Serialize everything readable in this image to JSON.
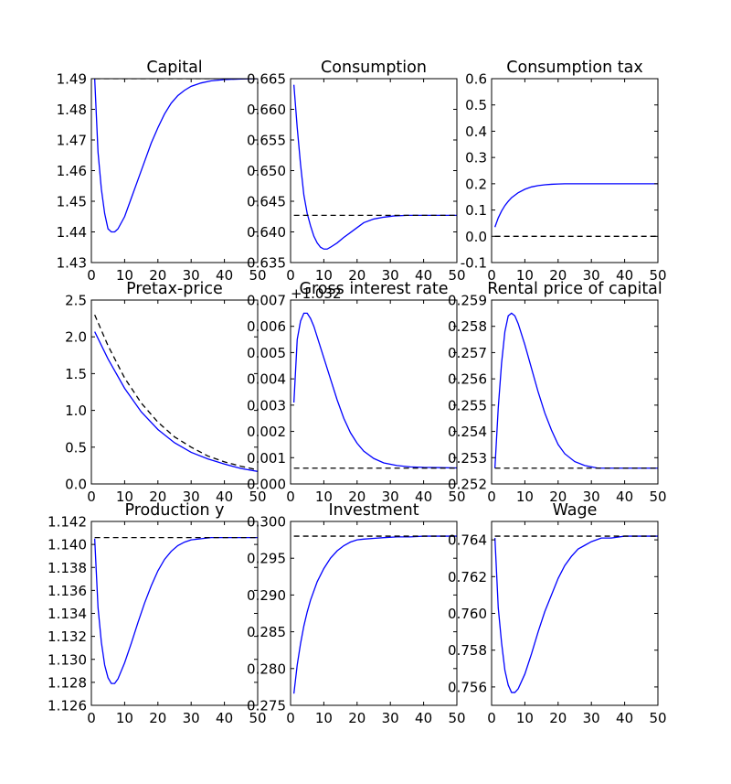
{
  "chart_data": [
    {
      "type": "line",
      "title": "Capital",
      "xlim": [
        0,
        50
      ],
      "ylim": [
        1.43,
        1.49
      ],
      "xticks": [
        0,
        10,
        20,
        30,
        40,
        50
      ],
      "xtick_labels": [
        "0",
        "10",
        "20",
        "30",
        "40",
        "50"
      ],
      "yticks": [
        1.43,
        1.44,
        1.45,
        1.46,
        1.47,
        1.48,
        1.49
      ],
      "ytick_labels": [
        "1.43",
        "1.44",
        "1.45",
        "1.46",
        "1.47",
        "1.48",
        "1.49"
      ],
      "series": [
        {
          "name": "path",
          "color": "#0000ff",
          "style": "solid",
          "x": [
            1,
            2,
            3,
            4,
            5,
            6,
            7,
            8,
            10,
            12,
            14,
            16,
            18,
            20,
            22,
            24,
            26,
            28,
            30,
            33,
            36,
            40,
            45,
            50
          ],
          "y": [
            1.49,
            1.466,
            1.454,
            1.446,
            1.441,
            1.44,
            1.44,
            1.441,
            1.445,
            1.451,
            1.457,
            1.463,
            1.469,
            1.474,
            1.4785,
            1.482,
            1.4845,
            1.4862,
            1.4875,
            1.4886,
            1.4893,
            1.4897,
            1.4899,
            1.49
          ]
        },
        {
          "name": "steady state",
          "color": "#000000",
          "style": "dashed",
          "x": [
            1,
            50
          ],
          "y": [
            1.49,
            1.49
          ]
        }
      ]
    },
    {
      "type": "line",
      "title": "Consumption",
      "xlim": [
        0,
        50
      ],
      "ylim": [
        0.635,
        0.665
      ],
      "xticks": [
        0,
        10,
        20,
        30,
        40,
        50
      ],
      "xtick_labels": [
        "0",
        "10",
        "20",
        "30",
        "40",
        "50"
      ],
      "yticks": [
        0.635,
        0.64,
        0.645,
        0.65,
        0.655,
        0.66,
        0.665
      ],
      "ytick_labels": [
        "0.635",
        "0.640",
        "0.645",
        "0.650",
        "0.655",
        "0.660",
        "0.665"
      ],
      "series": [
        {
          "name": "path",
          "color": "#0000ff",
          "style": "solid",
          "x": [
            1,
            2,
            3,
            4,
            5,
            6,
            7,
            8,
            9,
            10,
            11,
            12,
            14,
            16,
            18,
            20,
            22,
            25,
            28,
            31,
            35,
            40,
            45,
            50
          ],
          "y": [
            0.664,
            0.657,
            0.651,
            0.646,
            0.643,
            0.641,
            0.6393,
            0.6382,
            0.6375,
            0.6372,
            0.6372,
            0.6375,
            0.6382,
            0.6391,
            0.6399,
            0.6407,
            0.6415,
            0.6421,
            0.6424,
            0.6426,
            0.6427,
            0.6427,
            0.6427,
            0.6427
          ]
        },
        {
          "name": "steady state",
          "color": "#000000",
          "style": "dashed",
          "x": [
            1,
            50
          ],
          "y": [
            0.6427,
            0.6427
          ]
        }
      ]
    },
    {
      "type": "line",
      "title": "Consumption tax",
      "xlim": [
        0,
        50
      ],
      "ylim": [
        -0.1,
        0.6
      ],
      "xticks": [
        0,
        10,
        20,
        30,
        40,
        50
      ],
      "xtick_labels": [
        "0",
        "10",
        "20",
        "30",
        "40",
        "50"
      ],
      "yticks": [
        -0.1,
        0,
        0.1,
        0.2,
        0.3,
        0.4,
        0.5,
        0.6
      ],
      "ytick_labels": [
        "-0.1",
        "0.0",
        "0.1",
        "0.2",
        "0.3",
        "0.4",
        "0.5",
        "0.6"
      ],
      "series": [
        {
          "name": "path",
          "color": "#0000ff",
          "style": "solid",
          "x": [
            1,
            2,
            3,
            4,
            5,
            6,
            8,
            10,
            12,
            14,
            16,
            18,
            20,
            22,
            25,
            30,
            40,
            50
          ],
          "y": [
            0.035,
            0.07,
            0.096,
            0.117,
            0.133,
            0.147,
            0.166,
            0.179,
            0.188,
            0.193,
            0.196,
            0.198,
            0.199,
            0.2,
            0.2,
            0.2,
            0.2,
            0.2
          ]
        },
        {
          "name": "baseline",
          "color": "#000000",
          "style": "dashed",
          "x": [
            1,
            50
          ],
          "y": [
            0,
            0
          ]
        }
      ]
    },
    {
      "type": "line",
      "title": "Pretax-price",
      "xlim": [
        0,
        50
      ],
      "ylim": [
        0,
        2.5
      ],
      "xticks": [
        0,
        10,
        20,
        30,
        40,
        50
      ],
      "xtick_labels": [
        "0",
        "10",
        "20",
        "30",
        "40",
        "50"
      ],
      "yticks": [
        0,
        0.5,
        1,
        1.5,
        2,
        2.5
      ],
      "ytick_labels": [
        "0.0",
        "0.5",
        "1.0",
        "1.5",
        "2.0",
        "2.5"
      ],
      "series": [
        {
          "name": "path",
          "color": "#0000ff",
          "style": "solid",
          "x": [
            1,
            5,
            10,
            15,
            20,
            25,
            30,
            35,
            40,
            45,
            50
          ],
          "y": [
            2.07,
            1.7,
            1.3,
            0.98,
            0.74,
            0.56,
            0.43,
            0.34,
            0.27,
            0.21,
            0.17
          ]
        },
        {
          "name": "comparison",
          "color": "#000000",
          "style": "dashed",
          "x": [
            1,
            5,
            10,
            15,
            20,
            25,
            30,
            35,
            40,
            45,
            50
          ],
          "y": [
            2.3,
            1.88,
            1.44,
            1.1,
            0.84,
            0.64,
            0.5,
            0.38,
            0.3,
            0.24,
            0.19
          ]
        }
      ]
    },
    {
      "type": "line",
      "title": "Gross interest rate",
      "offset_text": "+1.032",
      "xlim": [
        0,
        50
      ],
      "ylim": [
        0,
        0.007
      ],
      "xticks": [
        0,
        10,
        20,
        30,
        40,
        50
      ],
      "xtick_labels": [
        "0",
        "10",
        "20",
        "30",
        "40",
        "50"
      ],
      "yticks": [
        0,
        0.001,
        0.002,
        0.003,
        0.004,
        0.005,
        0.006,
        0.007
      ],
      "ytick_labels": [
        "0.000",
        "0.001",
        "0.002",
        "0.003",
        "0.004",
        "0.005",
        "0.006",
        "0.007"
      ],
      "series": [
        {
          "name": "path",
          "color": "#0000ff",
          "style": "solid",
          "x": [
            1,
            2,
            3,
            4,
            5,
            6,
            7,
            8,
            10,
            12,
            14,
            16,
            18,
            20,
            22,
            25,
            28,
            32,
            36,
            40,
            45,
            50
          ],
          "y": [
            0.0031,
            0.0055,
            0.0062,
            0.0065,
            0.0065,
            0.0063,
            0.006,
            0.0056,
            0.0048,
            0.004,
            0.0032,
            0.0025,
            0.00195,
            0.00155,
            0.00125,
            0.00097,
            0.0008,
            0.0007,
            0.00065,
            0.00063,
            0.00062,
            0.00061
          ]
        },
        {
          "name": "steady state",
          "color": "#000000",
          "style": "dashed",
          "x": [
            1,
            50
          ],
          "y": [
            0.0006,
            0.0006
          ]
        }
      ]
    },
    {
      "type": "line",
      "title": "Rental price of capital",
      "xlim": [
        0,
        50
      ],
      "ylim": [
        0.252,
        0.259
      ],
      "xticks": [
        0,
        10,
        20,
        30,
        40,
        50
      ],
      "xtick_labels": [
        "0",
        "10",
        "20",
        "30",
        "40",
        "50"
      ],
      "yticks": [
        0.252,
        0.253,
        0.254,
        0.255,
        0.256,
        0.257,
        0.258,
        0.259
      ],
      "ytick_labels": [
        "0.252",
        "0.253",
        "0.254",
        "0.255",
        "0.256",
        "0.257",
        "0.258",
        "0.259"
      ],
      "series": [
        {
          "name": "path",
          "color": "#0000ff",
          "style": "solid",
          "x": [
            1,
            2,
            3,
            4,
            5,
            6,
            7,
            8,
            10,
            12,
            14,
            16,
            18,
            20,
            22,
            25,
            28,
            32,
            36,
            40,
            45,
            50
          ],
          "y": [
            0.2526,
            0.2549,
            0.2566,
            0.2578,
            0.2584,
            0.2585,
            0.2584,
            0.2581,
            0.2573,
            0.2564,
            0.2555,
            0.2547,
            0.25405,
            0.2535,
            0.25315,
            0.25285,
            0.2527,
            0.2526,
            0.2526,
            0.2526,
            0.2526,
            0.2526
          ]
        },
        {
          "name": "steady state",
          "color": "#000000",
          "style": "dashed",
          "x": [
            1,
            50
          ],
          "y": [
            0.2526,
            0.2526
          ]
        }
      ]
    },
    {
      "type": "line",
      "title": "Production y",
      "xlim": [
        0,
        50
      ],
      "ylim": [
        1.126,
        1.142
      ],
      "xticks": [
        0,
        10,
        20,
        30,
        40,
        50
      ],
      "xtick_labels": [
        "0",
        "10",
        "20",
        "30",
        "40",
        "50"
      ],
      "yticks": [
        1.126,
        1.128,
        1.13,
        1.132,
        1.134,
        1.136,
        1.138,
        1.14,
        1.142
      ],
      "ytick_labels": [
        "1.126",
        "1.128",
        "1.130",
        "1.132",
        "1.134",
        "1.136",
        "1.138",
        "1.140",
        "1.142"
      ],
      "series": [
        {
          "name": "path",
          "color": "#0000ff",
          "style": "solid",
          "x": [
            1,
            2,
            3,
            4,
            5,
            6,
            7,
            8,
            10,
            12,
            14,
            16,
            18,
            20,
            22,
            24,
            26,
            28,
            30,
            33,
            36,
            40,
            45,
            50
          ],
          "y": [
            1.1405,
            1.1345,
            1.1315,
            1.1295,
            1.1284,
            1.1279,
            1.1279,
            1.1283,
            1.1297,
            1.1314,
            1.1332,
            1.1349,
            1.1364,
            1.1377,
            1.1387,
            1.1394,
            1.1399,
            1.1402,
            1.1404,
            1.1405,
            1.1406,
            1.1406,
            1.1406,
            1.1406
          ]
        },
        {
          "name": "steady state",
          "color": "#000000",
          "style": "dashed",
          "x": [
            1,
            50
          ],
          "y": [
            1.1406,
            1.1406
          ]
        }
      ]
    },
    {
      "type": "line",
      "title": "Investment",
      "xlim": [
        0,
        50
      ],
      "ylim": [
        0.275,
        0.3
      ],
      "xticks": [
        0,
        10,
        20,
        30,
        40,
        50
      ],
      "xtick_labels": [
        "0",
        "10",
        "20",
        "30",
        "40",
        "50"
      ],
      "yticks": [
        0.275,
        0.28,
        0.285,
        0.29,
        0.295,
        0.3
      ],
      "ytick_labels": [
        "0.275",
        "0.280",
        "0.285",
        "0.290",
        "0.295",
        "0.300"
      ],
      "series": [
        {
          "name": "path",
          "color": "#0000ff",
          "style": "solid",
          "x": [
            1,
            2,
            3,
            4,
            5,
            6,
            8,
            10,
            12,
            14,
            16,
            18,
            20,
            22,
            25,
            28,
            32,
            36,
            40,
            45,
            50
          ],
          "y": [
            0.2766,
            0.2805,
            0.2834,
            0.2858,
            0.2877,
            0.2893,
            0.2918,
            0.2936,
            0.295,
            0.296,
            0.2967,
            0.2972,
            0.2975,
            0.2976,
            0.2977,
            0.2978,
            0.2979,
            0.2979,
            0.298,
            0.298,
            0.298
          ]
        },
        {
          "name": "steady state",
          "color": "#000000",
          "style": "dashed",
          "x": [
            1,
            50
          ],
          "y": [
            0.298,
            0.298
          ]
        }
      ]
    },
    {
      "type": "line",
      "title": "Wage",
      "xlim": [
        0,
        50
      ],
      "ylim": [
        0.755,
        0.765
      ],
      "xticks": [
        0,
        10,
        20,
        30,
        40,
        50
      ],
      "xtick_labels": [
        "0",
        "10",
        "20",
        "30",
        "40",
        "50"
      ],
      "yticks": [
        0.756,
        0.758,
        0.76,
        0.762,
        0.764
      ],
      "ytick_labels": [
        "0.756",
        "0.758",
        "0.760",
        "0.762",
        "0.764"
      ],
      "series": [
        {
          "name": "path",
          "color": "#0000ff",
          "style": "solid",
          "x": [
            1,
            2,
            3,
            4,
            5,
            6,
            7,
            8,
            10,
            12,
            14,
            16,
            18,
            20,
            22,
            24,
            26,
            28,
            30,
            33,
            36,
            40,
            45,
            50
          ],
          "y": [
            0.7641,
            0.7603,
            0.7584,
            0.7569,
            0.7561,
            0.7557,
            0.7557,
            0.7559,
            0.7567,
            0.7578,
            0.759,
            0.7601,
            0.761,
            0.7619,
            0.7626,
            0.7631,
            0.7635,
            0.7637,
            0.7639,
            0.7641,
            0.7641,
            0.7642,
            0.7642,
            0.7642
          ]
        },
        {
          "name": "steady state",
          "color": "#000000",
          "style": "dashed",
          "x": [
            1,
            50
          ],
          "y": [
            0.7642,
            0.7642
          ]
        }
      ]
    }
  ]
}
